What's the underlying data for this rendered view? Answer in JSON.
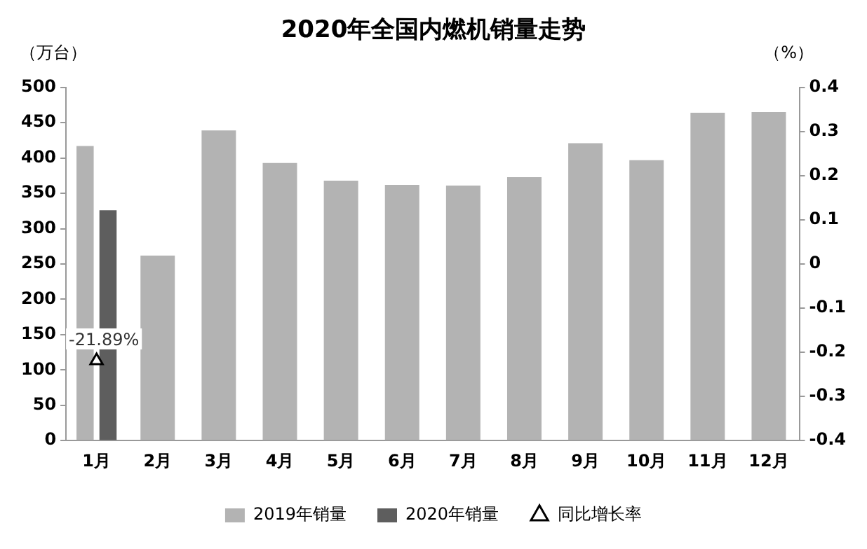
{
  "chart_data": {
    "type": "bar",
    "title": "2020年全国内燃机销量走势",
    "ylabel": "（万台）",
    "y2label": "（%）",
    "categories": [
      "1月",
      "2月",
      "3月",
      "4月",
      "5月",
      "6月",
      "7月",
      "8月",
      "9月",
      "10月",
      "11月",
      "12月"
    ],
    "series": [
      {
        "name": "2019年销量",
        "color": "#b3b3b3",
        "values": [
          417,
          262,
          439,
          393,
          368,
          362,
          361,
          373,
          421,
          397,
          464,
          465
        ]
      },
      {
        "name": "2020年销量",
        "color": "#5e5e5e",
        "values": [
          326,
          null,
          null,
          null,
          null,
          null,
          null,
          null,
          null,
          null,
          null,
          null
        ]
      },
      {
        "name": "同比增长率",
        "type": "line",
        "axis": "y2",
        "color": "#000000",
        "marker": "triangle",
        "values": [
          -0.2189,
          null,
          null,
          null,
          null,
          null,
          null,
          null,
          null,
          null,
          null,
          null
        ],
        "value_labels": [
          "-21.89%",
          null,
          null,
          null,
          null,
          null,
          null,
          null,
          null,
          null,
          null,
          null
        ]
      }
    ],
    "ylim": [
      0,
      500
    ],
    "yticks": [
      0,
      50,
      100,
      150,
      200,
      250,
      300,
      350,
      400,
      450,
      500
    ],
    "y2lim": [
      -0.4,
      0.4
    ],
    "y2ticks": [
      -0.4,
      -0.3,
      -0.2,
      -0.1,
      0,
      0.1,
      0.2,
      0.3,
      0.4
    ],
    "grid": false,
    "legend": "bottom"
  }
}
